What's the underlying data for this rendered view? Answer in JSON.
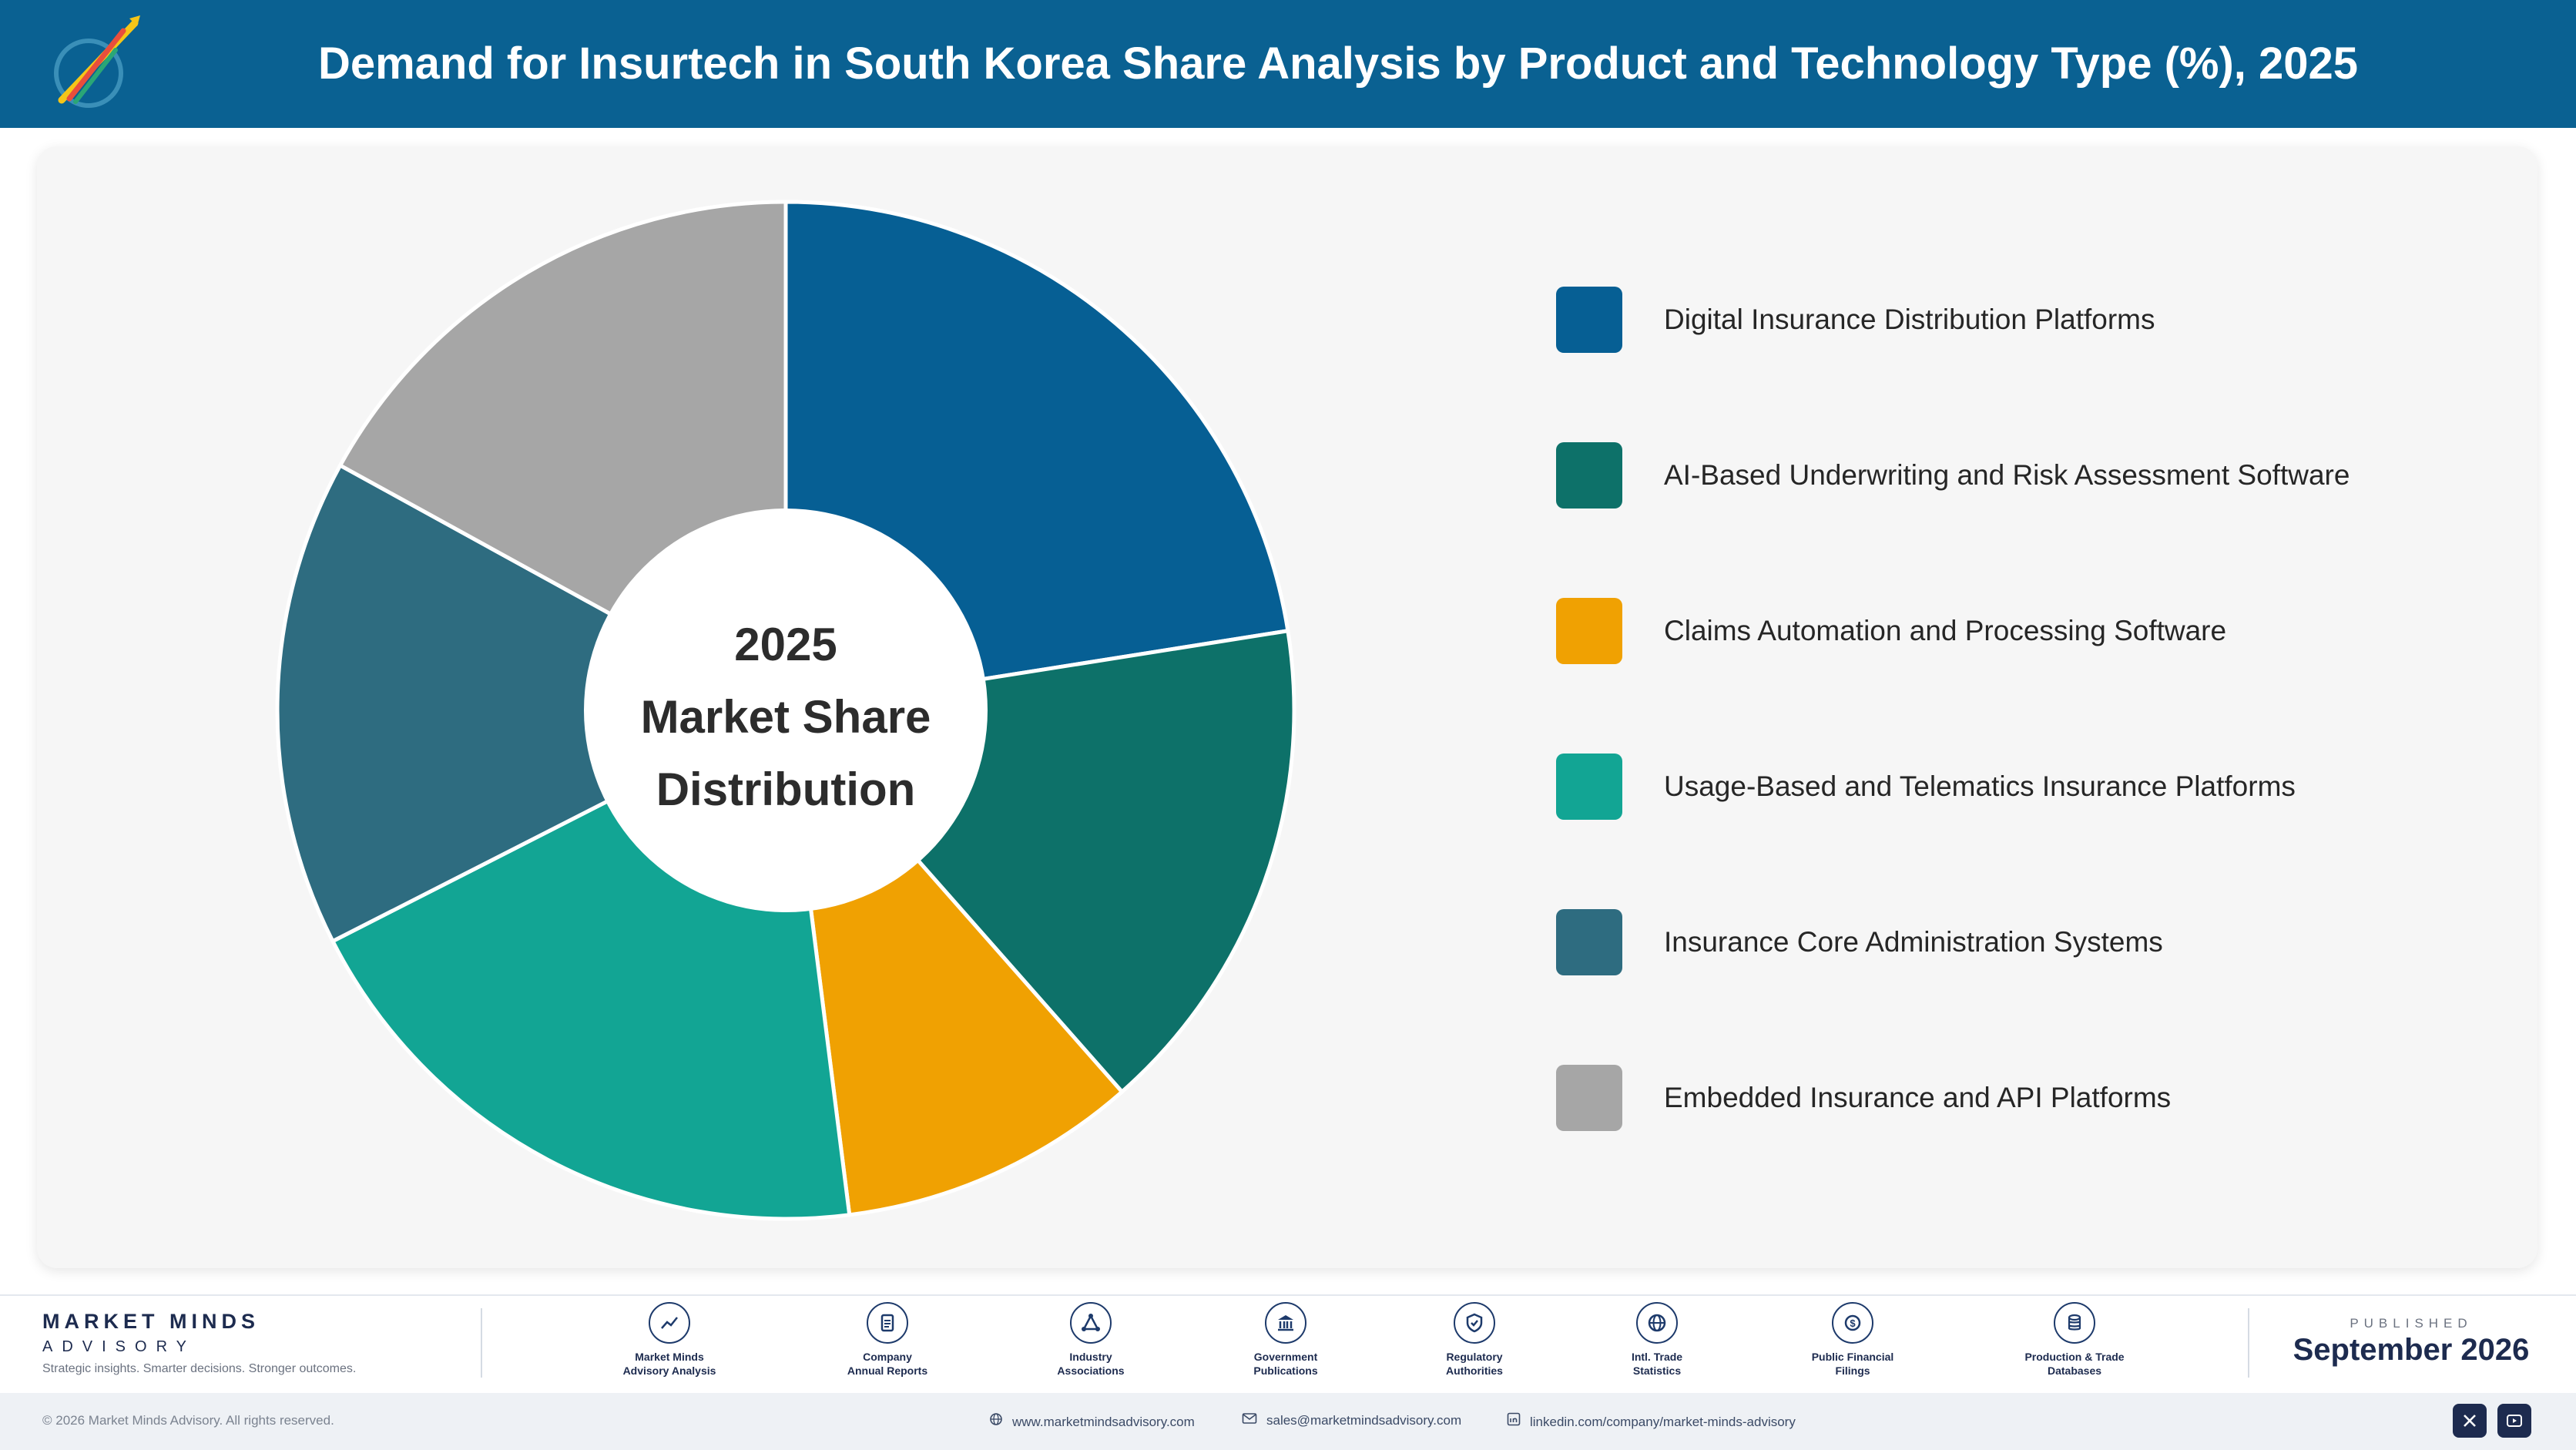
{
  "header": {
    "title": "Demand for Insurtech in South Korea Share Analysis by Product and Technology Type (%), 2025",
    "logo_icon": "market-minds-logo"
  },
  "chart_data": {
    "type": "pie",
    "variant": "donut",
    "center_label": [
      "2025",
      "Market Share",
      "Distribution"
    ],
    "categories": [
      "Digital Insurance Distribution Platforms",
      "AI-Based Underwriting and Risk Assessment Software",
      "Claims Automation and Processing Software",
      "Usage-Based and Telematics Insurance Platforms",
      "Insurance Core Administration Systems",
      "Embedded Insurance and API Platforms"
    ],
    "values": [
      22.5,
      16,
      9.5,
      19.5,
      15.5,
      17
    ],
    "colors": [
      "#065f94",
      "#0d7169",
      "#f0a102",
      "#12a594",
      "#2e6c80",
      "#a6a6a6"
    ],
    "legend_position": "right"
  },
  "footer": {
    "brand_name": "MARKET MINDS",
    "brand_sub": "ADVISORY",
    "brand_tagline": "Strategic insights. Smarter decisions. Stronger outcomes.",
    "sources": [
      {
        "icon": "chart-line-icon",
        "label": "Market Minds\nAdvisory Analysis"
      },
      {
        "icon": "document-icon",
        "label": "Company\nAnnual Reports"
      },
      {
        "icon": "network-icon",
        "label": "Industry\nAssociations"
      },
      {
        "icon": "government-building-icon",
        "label": "Government\nPublications"
      },
      {
        "icon": "shield-icon",
        "label": "Regulatory\nAuthorities"
      },
      {
        "icon": "globe-icon",
        "label": "Intl. Trade\nStatistics"
      },
      {
        "icon": "dollar-coin-icon",
        "label": "Public Financial\nFilings"
      },
      {
        "icon": "database-icon",
        "label": "Production & Trade\nDatabases"
      }
    ],
    "published_label": "PUBLISHED",
    "published_date": "September 2026",
    "copyright": "© 2026 Market Minds Advisory. All rights reserved.",
    "website": "www.marketmindsadvisory.com",
    "email": "sales@marketmindsadvisory.com",
    "linkedin": "linkedin.com/company/market-minds-advisory"
  }
}
